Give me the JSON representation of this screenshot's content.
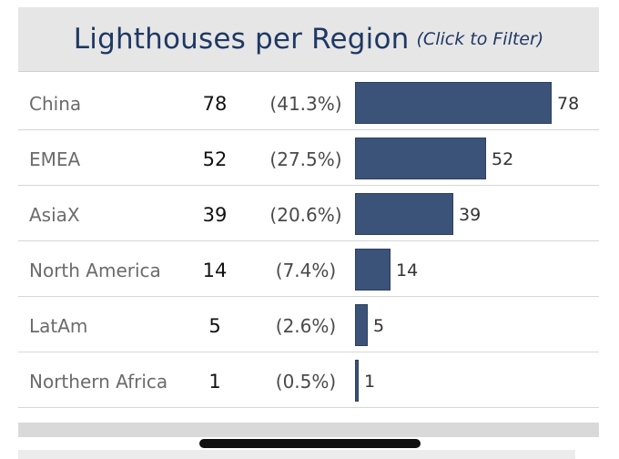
{
  "header": {
    "title": "Lighthouses per Region",
    "subtitle": "(Click to Filter)"
  },
  "colors": {
    "bar": "#3c5379",
    "title": "#1f3864",
    "header_bg": "#e6e6e6"
  },
  "chart_data": {
    "type": "bar",
    "orientation": "horizontal",
    "title": "Lighthouses per Region",
    "subtitle": "(Click to Filter)",
    "categories": [
      "China",
      "EMEA",
      "AsiaX",
      "North America",
      "LatAm",
      "Northern Africa"
    ],
    "values": [
      78,
      52,
      39,
      14,
      5,
      1
    ],
    "percent_labels": [
      "(41.3%)",
      "(27.5%)",
      "(20.6%)",
      "(7.4%)",
      "(2.6%)",
      "(0.5%)"
    ],
    "xlim": [
      0,
      78
    ],
    "grid": false,
    "legend": "none"
  }
}
